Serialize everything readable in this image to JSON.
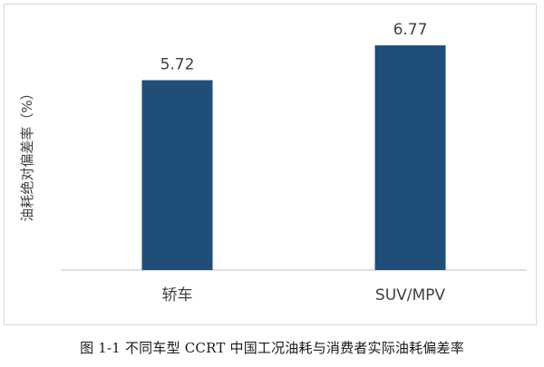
{
  "figure": {
    "caption": "图 1-1 不同车型 CCRT 中国工况油耗与消费者实际油耗偏差率"
  },
  "chart_data": {
    "type": "bar",
    "categories": [
      "轿车",
      "SUV/MPV"
    ],
    "values": [
      5.72,
      6.77
    ],
    "value_labels": [
      "5.72",
      "6.77"
    ],
    "title": "",
    "xlabel": "",
    "ylabel": "油耗绝对偏差率（%）",
    "ylim": [
      0,
      8
    ],
    "grid": false,
    "legend": "none",
    "bar_color": "#1f4e79",
    "axis_color": "#bfbfbf",
    "text_color": "#404040"
  }
}
